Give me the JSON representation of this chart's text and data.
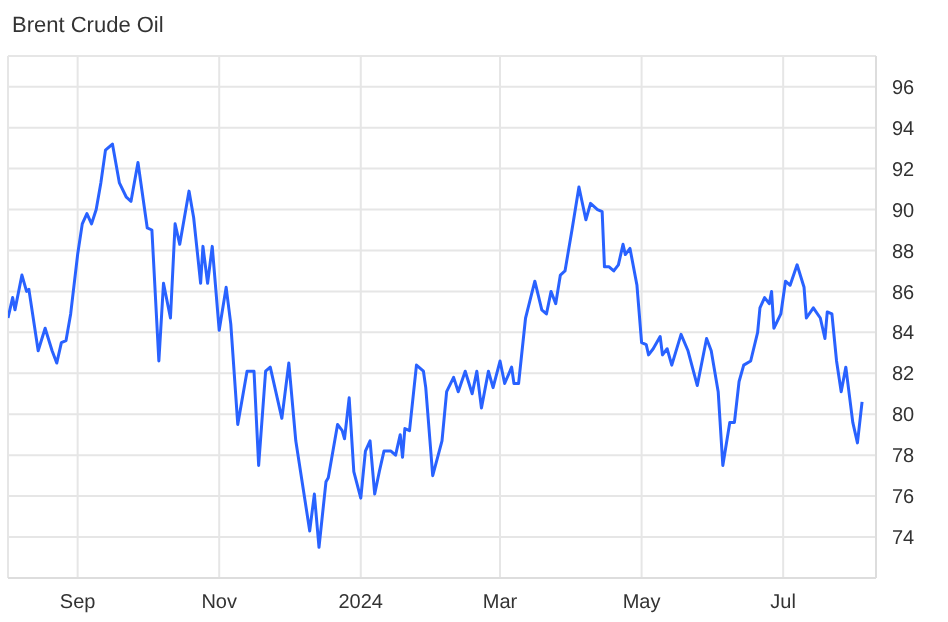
{
  "chart_data": {
    "type": "line",
    "title": "Brent Crude Oil",
    "x": [
      "2023-08-02",
      "2023-08-04",
      "2023-08-05",
      "2023-08-08",
      "2023-08-10",
      "2023-08-11",
      "2023-08-15",
      "2023-08-18",
      "2023-08-21",
      "2023-08-23",
      "2023-08-25",
      "2023-08-27",
      "2023-08-29",
      "2023-09-01",
      "2023-09-03",
      "2023-09-05",
      "2023-09-07",
      "2023-09-09",
      "2023-09-11",
      "2023-09-13",
      "2023-09-16",
      "2023-09-19",
      "2023-09-22",
      "2023-09-24",
      "2023-09-27",
      "2023-10-01",
      "2023-10-03",
      "2023-10-06",
      "2023-10-08",
      "2023-10-11",
      "2023-10-13",
      "2023-10-15",
      "2023-10-19",
      "2023-10-21",
      "2023-10-24",
      "2023-10-25",
      "2023-10-27",
      "2023-10-29",
      "2023-11-01",
      "2023-11-04",
      "2023-11-06",
      "2023-11-09",
      "2023-11-13",
      "2023-11-16",
      "2023-11-18",
      "2023-11-21",
      "2023-11-23",
      "2023-11-28",
      "2023-12-01",
      "2023-12-04",
      "2023-12-10",
      "2023-12-12",
      "2023-12-14",
      "2023-12-17",
      "2023-12-18",
      "2023-12-22",
      "2023-12-24",
      "2023-12-25",
      "2023-12-27",
      "2023-12-29",
      "2024-01-01",
      "2024-01-03",
      "2024-01-05",
      "2024-01-07",
      "2024-01-09",
      "2024-01-11",
      "2024-01-14",
      "2024-01-16",
      "2024-01-18",
      "2024-01-19",
      "2024-01-20",
      "2024-01-22",
      "2024-01-25",
      "2024-01-28",
      "2024-01-29",
      "2024-02-01",
      "2024-02-05",
      "2024-02-07",
      "2024-02-10",
      "2024-02-12",
      "2024-02-15",
      "2024-02-18",
      "2024-02-20",
      "2024-02-22",
      "2024-02-25",
      "2024-02-27",
      "2024-03-01",
      "2024-03-03",
      "2024-03-06",
      "2024-03-07",
      "2024-03-09",
      "2024-03-12",
      "2024-03-16",
      "2024-03-19",
      "2024-03-21",
      "2024-03-23",
      "2024-03-25",
      "2024-03-27",
      "2024-03-29",
      "2024-04-01",
      "2024-04-04",
      "2024-04-07",
      "2024-04-09",
      "2024-04-12",
      "2024-04-14",
      "2024-04-15",
      "2024-04-17",
      "2024-04-19",
      "2024-04-21",
      "2024-04-23",
      "2024-04-24",
      "2024-04-26",
      "2024-04-29",
      "2024-05-01",
      "2024-05-03",
      "2024-05-04",
      "2024-05-06",
      "2024-05-09",
      "2024-05-10",
      "2024-05-12",
      "2024-05-14",
      "2024-05-18",
      "2024-05-21",
      "2024-05-25",
      "2024-05-29",
      "2024-05-31",
      "2024-06-03",
      "2024-06-05",
      "2024-06-08",
      "2024-06-10",
      "2024-06-12",
      "2024-06-14",
      "2024-06-17",
      "2024-06-20",
      "2024-06-21",
      "2024-06-23",
      "2024-06-25",
      "2024-06-26",
      "2024-06-27",
      "2024-06-30",
      "2024-07-02",
      "2024-07-04",
      "2024-07-07",
      "2024-07-10",
      "2024-07-11",
      "2024-07-14",
      "2024-07-17",
      "2024-07-19",
      "2024-07-20",
      "2024-07-22",
      "2024-07-24",
      "2024-07-26",
      "2024-07-28",
      "2024-07-31",
      "2024-08-02",
      "2024-08-04"
    ],
    "series": [
      {
        "color": "#2962ff",
        "values": [
          84.7,
          85.7,
          85.1,
          86.8,
          86.0,
          86.1,
          83.1,
          84.2,
          83.1,
          82.5,
          83.5,
          83.6,
          84.9,
          87.8,
          89.3,
          89.8,
          89.3,
          90.0,
          91.3,
          92.9,
          93.2,
          91.3,
          90.6,
          90.4,
          92.3,
          89.1,
          89.0,
          82.6,
          86.4,
          84.7,
          89.3,
          88.3,
          90.9,
          89.6,
          86.4,
          88.2,
          86.4,
          88.2,
          84.1,
          86.2,
          84.4,
          79.5,
          82.1,
          82.1,
          77.5,
          82.1,
          82.3,
          79.8,
          82.5,
          78.7,
          74.3,
          76.1,
          73.5,
          76.7,
          76.9,
          79.5,
          79.2,
          78.8,
          80.8,
          77.2,
          75.9,
          78.2,
          78.7,
          76.1,
          77.2,
          78.2,
          78.2,
          78.0,
          79.0,
          77.9,
          79.3,
          79.2,
          82.4,
          82.1,
          81.3,
          77.0,
          78.7,
          81.1,
          81.8,
          81.1,
          82.1,
          81.0,
          82.1,
          80.3,
          82.1,
          81.3,
          82.6,
          81.5,
          82.3,
          81.5,
          81.5,
          84.7,
          86.5,
          85.1,
          84.9,
          86.0,
          85.4,
          86.8,
          87.0,
          89.0,
          91.1,
          89.5,
          90.3,
          90.0,
          89.9,
          87.2,
          87.2,
          87.0,
          87.3,
          88.3,
          87.8,
          88.1,
          86.3,
          83.5,
          83.4,
          82.9,
          83.2,
          83.8,
          82.9,
          83.2,
          82.4,
          83.9,
          83.1,
          81.4,
          83.7,
          83.1,
          81.1,
          77.5,
          79.6,
          79.6,
          81.6,
          82.4,
          82.6,
          84.0,
          85.2,
          85.7,
          85.4,
          86.0,
          84.2,
          84.9,
          86.5,
          86.3,
          87.3,
          86.2,
          84.7,
          85.2,
          84.7,
          83.7,
          85.0,
          84.9,
          82.6,
          81.1,
          82.3,
          79.6,
          78.6,
          80.6
        ]
      }
    ],
    "xlim": [
      "2023-08-02",
      "2024-08-10"
    ],
    "xticks": [
      {
        "value": "2023-09-01",
        "label": "Sep"
      },
      {
        "value": "2023-11-01",
        "label": "Nov"
      },
      {
        "value": "2024-01-01",
        "label": "2024"
      },
      {
        "value": "2024-03-01",
        "label": "Mar"
      },
      {
        "value": "2024-05-01",
        "label": "May"
      },
      {
        "value": "2024-07-01",
        "label": "Jul"
      }
    ],
    "ylim": [
      72,
      97.5
    ],
    "yticks": [
      74,
      76,
      78,
      80,
      82,
      84,
      86,
      88,
      90,
      92,
      94,
      96
    ],
    "grid": true,
    "marker": "none",
    "line_style": "solid",
    "legend": false
  }
}
